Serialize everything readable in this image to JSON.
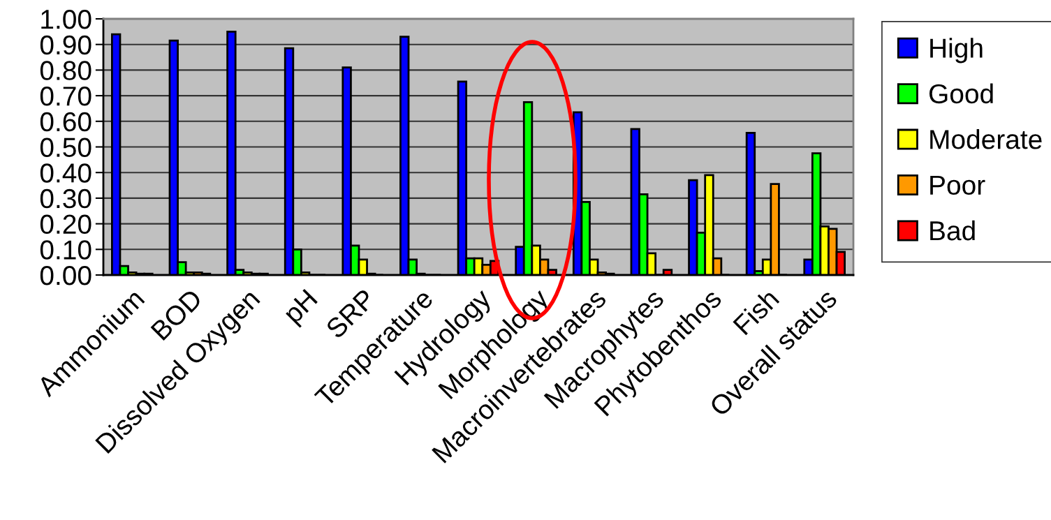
{
  "chart_data": {
    "type": "bar",
    "categories": [
      "Ammonium",
      "BOD",
      "Dissolved Oxygen",
      "pH",
      "SRP",
      "Temperature",
      "Hydrology",
      "Morphology",
      "Macroinvertebrates",
      "Macrophytes",
      "Phytobenthos",
      "Fish",
      "Overall status"
    ],
    "series": [
      {
        "name": "High",
        "color": "#0000ff",
        "values": [
          0.94,
          0.915,
          0.95,
          0.885,
          0.81,
          0.93,
          0.755,
          0.11,
          0.635,
          0.57,
          0.37,
          0.555,
          0.06
        ]
      },
      {
        "name": "Good",
        "color": "#00ff00",
        "values": [
          0.035,
          0.05,
          0.02,
          0.1,
          0.115,
          0.06,
          0.065,
          0.675,
          0.285,
          0.315,
          0.165,
          0.015,
          0.475
        ]
      },
      {
        "name": "Moderate",
        "color": "#ffff00",
        "values": [
          0.01,
          0.01,
          0.01,
          0.01,
          0.06,
          0.005,
          0.065,
          0.115,
          0.06,
          0.085,
          0.39,
          0.06,
          0.19
        ]
      },
      {
        "name": "Poor",
        "color": "#ff9900",
        "values": [
          0.005,
          0.01,
          0.005,
          0,
          0.005,
          0,
          0.04,
          0.06,
          0.01,
          0,
          0.065,
          0.355,
          0.18
        ]
      },
      {
        "name": "Bad",
        "color": "#ff0000",
        "values": [
          0.005,
          0.005,
          0.005,
          0,
          0,
          0,
          0.055,
          0.02,
          0.005,
          0.02,
          0,
          0,
          0.09
        ]
      }
    ],
    "ylim": [
      0,
      1.0
    ],
    "yticks": [
      {
        "value": 0,
        "label": "0.00"
      },
      {
        "value": 0.1,
        "label": "0.10"
      },
      {
        "value": 0.2,
        "label": "0.20"
      },
      {
        "value": 0.3,
        "label": "0.30"
      },
      {
        "value": 0.4,
        "label": "0.40"
      },
      {
        "value": 0.5,
        "label": "0.50"
      },
      {
        "value": 0.6,
        "label": "0.60"
      },
      {
        "value": 0.7,
        "label": "0.70"
      },
      {
        "value": 0.8,
        "label": "0.80"
      },
      {
        "value": 0.9,
        "label": "0.90"
      },
      {
        "value": 1.0,
        "label": "1.00"
      }
    ],
    "grid": "y",
    "legend": "right"
  }
}
